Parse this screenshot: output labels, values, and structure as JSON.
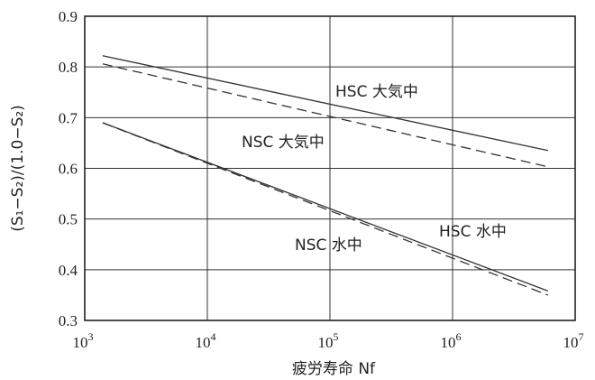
{
  "chart_data": {
    "type": "line",
    "title": "",
    "xlabel": "疲労寿命 Nf",
    "ylabel": "(S₁−S₂)/(1.0−S₂)",
    "x_scale": "log",
    "xlim": [
      1000,
      10000000
    ],
    "ylim": [
      0.3,
      0.9
    ],
    "grid": true,
    "x_ticks": [
      {
        "base": "10",
        "exp": "3",
        "value": 1000
      },
      {
        "base": "10",
        "exp": "4",
        "value": 10000
      },
      {
        "base": "10",
        "exp": "5",
        "value": 100000
      },
      {
        "base": "10",
        "exp": "6",
        "value": 1000000
      },
      {
        "base": "10",
        "exp": "7",
        "value": 10000000
      }
    ],
    "y_ticks": [
      "0.3",
      "0.4",
      "0.5",
      "0.6",
      "0.7",
      "0.8",
      "0.9"
    ],
    "series": [
      {
        "name": "HSC 大気中",
        "style": "solid",
        "x": [
          1400,
          6000000
        ],
        "y": [
          0.822,
          0.635
        ]
      },
      {
        "name": "NSC 大気中",
        "style": "dashed",
        "x": [
          1400,
          6000000
        ],
        "y": [
          0.806,
          0.603
        ]
      },
      {
        "name": "NSC 水中",
        "style": "dashed",
        "x": [
          1400,
          6000000
        ],
        "y": [
          0.69,
          0.35
        ]
      },
      {
        "name": "HSC 水中",
        "style": "solid",
        "x": [
          1400,
          6000000
        ],
        "y": [
          0.69,
          0.358
        ]
      }
    ],
    "annotations": [
      {
        "text": "HSC 大気中",
        "series": 0
      },
      {
        "text": "NSC 大気中",
        "series": 1
      },
      {
        "text": "NSC 水中",
        "series": 2
      },
      {
        "text": "HSC 水中",
        "series": 3
      }
    ]
  }
}
